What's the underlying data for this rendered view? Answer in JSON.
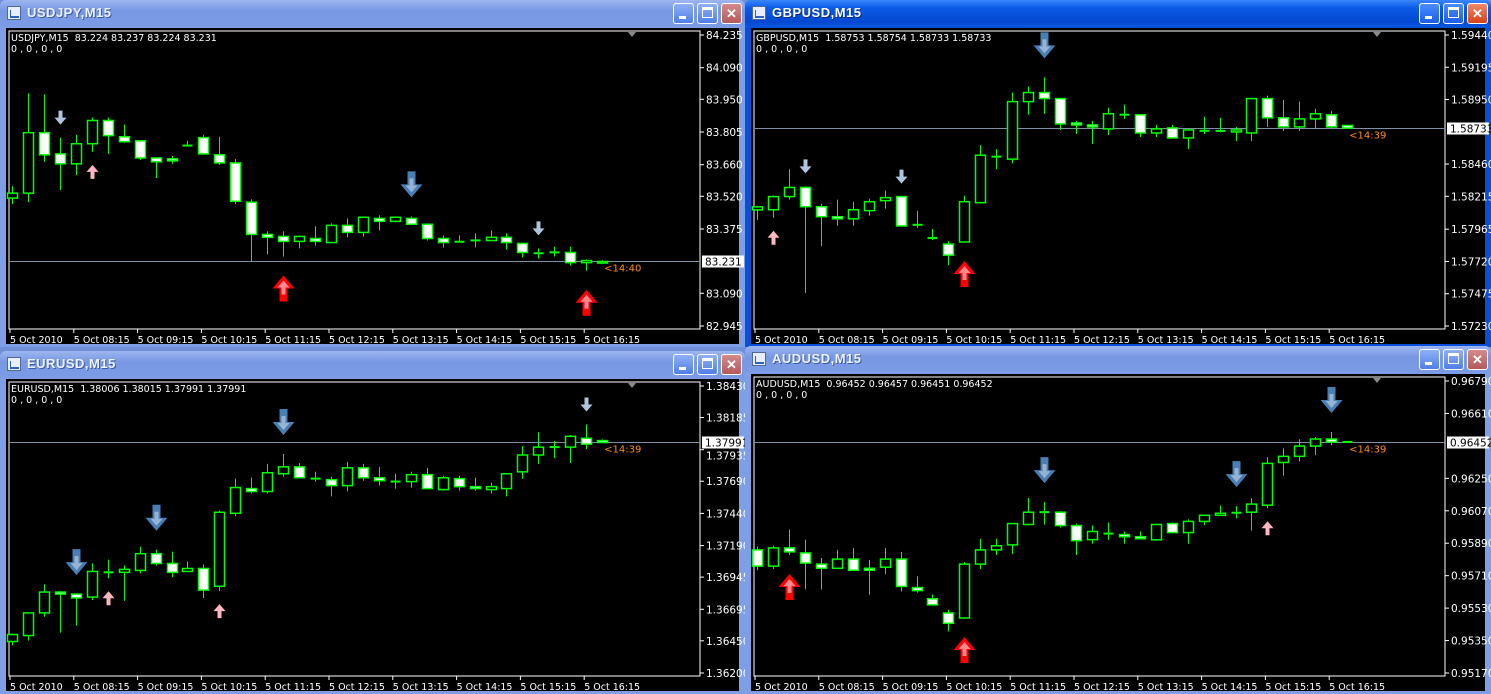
{
  "colors": {
    "bull_outline": "#00ff00",
    "bear_fill": "#ffffff",
    "background": "#000000",
    "bid_line": "#7f8fa6",
    "countdown": "#ff8c1a",
    "arrow_blue": "#4a7fb5",
    "arrow_light": "#b0c4de",
    "arrow_pink": "#ffb6c1",
    "arrow_red": "#ff0000"
  },
  "time_labels": [
    "5 Oct 2010",
    "5 Oct 08:15",
    "5 Oct 09:15",
    "5 Oct 10:15",
    "5 Oct 11:15",
    "5 Oct 12:15",
    "5 Oct 13:15",
    "5 Oct 14:15",
    "5 Oct 15:15",
    "5 Oct 16:15"
  ],
  "charts": [
    {
      "title": "USDJPY,M15",
      "active": false,
      "header_line": "USDJPY,M15  83.224 83.237 83.224 83.231",
      "indicator_line": "0 , 0 , 0 , 0",
      "ylim": [
        82.945,
        84.235
      ],
      "yticks": [
        "84.235",
        "84.090",
        "83.950",
        "83.805",
        "83.660",
        "83.520",
        "83.375",
        "83.090",
        "82.945"
      ],
      "bid": "83.231",
      "countdown": "<14:40",
      "candles": [
        [
          83.512,
          83.565,
          83.485,
          83.534
        ],
        [
          83.534,
          83.976,
          83.494,
          83.802
        ],
        [
          83.802,
          83.972,
          83.673,
          83.704
        ],
        [
          83.708,
          83.78,
          83.548,
          83.664
        ],
        [
          83.664,
          83.793,
          83.614,
          83.753
        ],
        [
          83.753,
          83.869,
          83.717,
          83.856
        ],
        [
          83.856,
          83.869,
          83.708,
          83.789
        ],
        [
          83.784,
          83.838,
          83.757,
          83.762
        ],
        [
          83.766,
          83.766,
          83.681,
          83.69
        ],
        [
          83.69,
          83.69,
          83.601,
          83.673
        ],
        [
          83.686,
          83.699,
          83.664,
          83.677
        ],
        [
          83.744,
          83.766,
          83.744,
          83.746
        ],
        [
          83.78,
          83.793,
          83.704,
          83.708
        ],
        [
          83.704,
          83.784,
          83.659,
          83.668
        ],
        [
          83.668,
          83.686,
          83.485,
          83.498
        ],
        [
          83.494,
          83.507,
          83.231,
          83.351
        ],
        [
          83.351,
          83.365,
          83.262,
          83.338
        ],
        [
          83.342,
          83.365,
          83.253,
          83.32
        ],
        [
          83.32,
          83.347,
          83.289,
          83.342
        ],
        [
          83.333,
          83.387,
          83.302,
          83.32
        ],
        [
          83.315,
          83.4,
          83.315,
          83.391
        ],
        [
          83.391,
          83.422,
          83.338,
          83.36
        ],
        [
          83.36,
          83.431,
          83.342,
          83.427
        ],
        [
          83.422,
          83.436,
          83.369,
          83.409
        ],
        [
          83.409,
          83.431,
          83.404,
          83.427
        ],
        [
          83.422,
          83.431,
          83.396,
          83.396
        ],
        [
          83.396,
          83.4,
          83.324,
          83.333
        ],
        [
          83.333,
          83.347,
          83.293,
          83.315
        ],
        [
          83.317,
          83.347,
          83.317,
          83.32
        ],
        [
          83.324,
          83.356,
          83.293,
          83.325
        ],
        [
          83.324,
          83.369,
          83.324,
          83.338
        ],
        [
          83.338,
          83.356,
          83.284,
          83.315
        ],
        [
          83.311,
          83.315,
          83.249,
          83.271
        ],
        [
          83.267,
          83.289,
          83.244,
          83.268
        ],
        [
          83.271,
          83.297,
          83.253,
          83.272
        ],
        [
          83.271,
          83.297,
          83.213,
          83.226
        ],
        [
          83.226,
          83.24,
          83.19,
          83.235
        ],
        [
          83.224,
          83.237,
          83.224,
          83.231
        ]
      ],
      "arrows": [
        {
          "bar": 3,
          "type": "small-light-down"
        },
        {
          "bar": 5,
          "type": "small-pink-up"
        },
        {
          "bar": 17,
          "type": "big-red-up"
        },
        {
          "bar": 25,
          "type": "big-blue-down"
        },
        {
          "bar": 33,
          "type": "small-light-down"
        },
        {
          "bar": 36,
          "type": "big-red-up"
        }
      ]
    },
    {
      "title": "GBPUSD,M15",
      "active": true,
      "header_line": "GBPUSD,M15  1.58753 1.58754 1.58733 1.58733",
      "indicator_line": "0 , 0 , 0 , 0",
      "ylim": [
        1.5723,
        1.5944
      ],
      "yticks": [
        "1.59440",
        "1.59195",
        "1.58950",
        "1.58460",
        "1.58215",
        "1.57965",
        "1.57720",
        "1.57475",
        "1.57230"
      ],
      "bid": "1.58733",
      "countdown": "<14:39",
      "candles": [
        [
          1.58112,
          1.58143,
          1.58036,
          1.58135
        ],
        [
          1.58113,
          1.5822,
          1.58052,
          1.58213
        ],
        [
          1.58213,
          1.5842,
          1.5819,
          1.58282
        ],
        [
          1.58282,
          1.5829,
          1.5748,
          1.58136
        ],
        [
          1.58136,
          1.58159,
          1.57837,
          1.5806
        ],
        [
          1.5806,
          1.5819,
          1.5799,
          1.58044
        ],
        [
          1.58044,
          1.58174,
          1.5799,
          1.58113
        ],
        [
          1.58106,
          1.58197,
          1.58067,
          1.58174
        ],
        [
          1.58182,
          1.58259,
          1.58121,
          1.58205
        ],
        [
          1.58213,
          1.58213,
          1.5799,
          1.5799
        ],
        [
          1.57998,
          1.58106,
          1.57975,
          1.57999
        ],
        [
          1.57898,
          1.57967,
          1.57883,
          1.57899
        ],
        [
          1.57852,
          1.57875,
          1.57691,
          1.57768
        ],
        [
          1.57868,
          1.5822,
          1.57868,
          1.58174
        ],
        [
          1.58167,
          1.58604,
          1.58159,
          1.58527
        ],
        [
          1.58512,
          1.58573,
          1.5842,
          1.5852
        ],
        [
          1.58497,
          1.59003,
          1.58466,
          1.58934
        ],
        [
          1.58934,
          1.59049,
          1.58834,
          1.59003
        ],
        [
          1.59003,
          1.59118,
          1.58842,
          1.58957
        ],
        [
          1.58957,
          1.58957,
          1.58719,
          1.58765
        ],
        [
          1.58772,
          1.58788,
          1.58688,
          1.58757
        ],
        [
          1.58757,
          1.58788,
          1.58612,
          1.58742
        ],
        [
          1.58727,
          1.58888,
          1.58681,
          1.58842
        ],
        [
          1.58834,
          1.58911,
          1.58803,
          1.58835
        ],
        [
          1.58834,
          1.58834,
          1.58665,
          1.58696
        ],
        [
          1.58696,
          1.58757,
          1.58665,
          1.58727
        ],
        [
          1.58734,
          1.58757,
          1.58658,
          1.58658
        ],
        [
          1.58658,
          1.58727,
          1.58573,
          1.58719
        ],
        [
          1.58711,
          1.58819,
          1.58688,
          1.58714
        ],
        [
          1.58711,
          1.58811,
          1.58703,
          1.58712
        ],
        [
          1.58704,
          1.58742,
          1.58634,
          1.58719
        ],
        [
          1.58696,
          1.58957,
          1.58634,
          1.58957
        ],
        [
          1.58957,
          1.5898,
          1.58742,
          1.58811
        ],
        [
          1.58811,
          1.58946,
          1.58711,
          1.58742
        ],
        [
          1.58742,
          1.58934,
          1.58711,
          1.58803
        ],
        [
          1.58803,
          1.5888,
          1.58727,
          1.58842
        ],
        [
          1.58834,
          1.58865,
          1.58727,
          1.58742
        ],
        [
          1.58753,
          1.58754,
          1.58733,
          1.58733
        ]
      ],
      "arrows": [
        {
          "bar": 1,
          "type": "small-pink-up"
        },
        {
          "bar": 3,
          "type": "small-light-down"
        },
        {
          "bar": 9,
          "type": "small-light-down"
        },
        {
          "bar": 13,
          "type": "big-red-up"
        },
        {
          "bar": 18,
          "type": "big-blue-down"
        }
      ]
    },
    {
      "title": "EURUSD,M15",
      "active": false,
      "header_line": "EURUSD,M15  1.38006 1.38015 1.37991 1.37991",
      "indicator_line": "0 , 0 , 0 , 0",
      "ylim": [
        1.362,
        1.3843
      ],
      "yticks": [
        "1.38430",
        "1.38185",
        "1.37935",
        "1.37690",
        "1.37440",
        "1.37190",
        "1.36945",
        "1.36695",
        "1.36450",
        "1.36200"
      ],
      "bid": "1.37991",
      "countdown": "<14:39",
      "candles": [
        [
          1.36445,
          1.36507,
          1.36415,
          1.36499
        ],
        [
          1.36491,
          1.36667,
          1.36453,
          1.36667
        ],
        [
          1.36667,
          1.3689,
          1.36637,
          1.36829
        ],
        [
          1.36829,
          1.36836,
          1.36514,
          1.36813
        ],
        [
          1.36813,
          1.36813,
          1.36568,
          1.36783
        ],
        [
          1.3679,
          1.37051,
          1.36767,
          1.36989
        ],
        [
          1.36982,
          1.37081,
          1.36936,
          1.36983
        ],
        [
          1.36982,
          1.37035,
          1.3676,
          1.37005
        ],
        [
          1.36997,
          1.37181,
          1.36974,
          1.37127
        ],
        [
          1.37127,
          1.37158,
          1.37035,
          1.37051
        ],
        [
          1.37051,
          1.37143,
          1.36944,
          1.36982
        ],
        [
          1.36989,
          1.37066,
          1.36989,
          1.37012
        ],
        [
          1.37012,
          1.37043,
          1.36783,
          1.36844
        ],
        [
          1.36874,
          1.37464,
          1.36836,
          1.37449
        ],
        [
          1.37441,
          1.3771,
          1.37418,
          1.37641
        ],
        [
          1.37633,
          1.37718,
          1.37595,
          1.3761
        ],
        [
          1.3761,
          1.37825,
          1.37595,
          1.37756
        ],
        [
          1.37748,
          1.37902,
          1.37725,
          1.37802
        ],
        [
          1.37802,
          1.37832,
          1.37717,
          1.37717
        ],
        [
          1.3771,
          1.37764,
          1.37687,
          1.37711
        ],
        [
          1.37702,
          1.37725,
          1.37572,
          1.37656
        ],
        [
          1.37656,
          1.3784,
          1.3761,
          1.37794
        ],
        [
          1.37794,
          1.37825,
          1.37694,
          1.37717
        ],
        [
          1.37717,
          1.37802,
          1.37656,
          1.37694
        ],
        [
          1.37687,
          1.37748,
          1.37633,
          1.37688
        ],
        [
          1.37687,
          1.37764,
          1.3764,
          1.37741
        ],
        [
          1.37741,
          1.37794,
          1.37633,
          1.37633
        ],
        [
          1.37625,
          1.37733,
          1.37617,
          1.37717
        ],
        [
          1.3771,
          1.37733,
          1.37617,
          1.37648
        ],
        [
          1.37648,
          1.37717,
          1.37617,
          1.37633
        ],
        [
          1.37625,
          1.37679,
          1.37595,
          1.37648
        ],
        [
          1.37633,
          1.37748,
          1.37572,
          1.37748
        ],
        [
          1.37763,
          1.37963,
          1.3771,
          1.37894
        ],
        [
          1.37894,
          1.38071,
          1.37825,
          1.37955
        ],
        [
          1.37955,
          1.38002,
          1.3787,
          1.37956
        ],
        [
          1.37955,
          1.38047,
          1.37832,
          1.38039
        ],
        [
          1.38024,
          1.38131,
          1.3794,
          1.37978
        ],
        [
          1.38006,
          1.38015,
          1.37991,
          1.37991
        ]
      ],
      "arrows": [
        {
          "bar": 4,
          "type": "big-blue-down"
        },
        {
          "bar": 6,
          "type": "small-pink-up"
        },
        {
          "bar": 9,
          "type": "big-blue-down"
        },
        {
          "bar": 13,
          "type": "small-pink-up"
        },
        {
          "bar": 17,
          "type": "big-blue-down"
        },
        {
          "bar": 36,
          "type": "small-light-down"
        }
      ]
    },
    {
      "title": "AUDUSD,M15",
      "active": false,
      "header_line": "AUDUSD,M15  0.96452 0.96457 0.96451 0.96452",
      "indicator_line": "0 , 0 , 0 , 0",
      "ylim": [
        0.9517,
        0.9679
      ],
      "yticks": [
        "0.96790",
        "0.96610",
        "0.96250",
        "0.96070",
        "0.95890",
        "0.95710",
        "0.95530",
        "0.95350",
        "0.95170"
      ],
      "bid": "0.96452",
      "countdown": "<14:39",
      "candles": [
        [
          0.95853,
          0.95872,
          0.95741,
          0.95763
        ],
        [
          0.95763,
          0.95876,
          0.95746,
          0.95864
        ],
        [
          0.95864,
          0.95966,
          0.95825,
          0.95842
        ],
        [
          0.95836,
          0.95909,
          0.95633,
          0.9578
        ],
        [
          0.95774,
          0.95808,
          0.95633,
          0.95751
        ],
        [
          0.95751,
          0.95853,
          0.95746,
          0.95802
        ],
        [
          0.95802,
          0.95864,
          0.9574,
          0.9574
        ],
        [
          0.95751,
          0.95797,
          0.95605,
          0.9574
        ],
        [
          0.95757,
          0.95864,
          0.95718,
          0.95802
        ],
        [
          0.95802,
          0.95842,
          0.95622,
          0.9565
        ],
        [
          0.95644,
          0.95706,
          0.95616,
          0.95627
        ],
        [
          0.95582,
          0.95605,
          0.95548,
          0.95548
        ],
        [
          0.95503,
          0.9552,
          0.95401,
          0.95446
        ],
        [
          0.95475,
          0.95785,
          0.95475,
          0.95774
        ],
        [
          0.95774,
          0.95915,
          0.95746,
          0.95853
        ],
        [
          0.95853,
          0.95915,
          0.95825,
          0.95876
        ],
        [
          0.95881,
          0.95999,
          0.95831,
          0.95999
        ],
        [
          0.95994,
          0.96141,
          0.95988,
          0.96062
        ],
        [
          0.96062,
          0.96118,
          0.95994,
          0.96063
        ],
        [
          0.96062,
          0.96068,
          0.95977,
          0.95988
        ],
        [
          0.95988,
          0.95999,
          0.95825,
          0.95904
        ],
        [
          0.9591,
          0.95988,
          0.95887,
          0.95955
        ],
        [
          0.95943,
          0.96005,
          0.95909,
          0.95944
        ],
        [
          0.95938,
          0.95955,
          0.95887,
          0.95926
        ],
        [
          0.95926,
          0.95955,
          0.95915,
          0.95915
        ],
        [
          0.95909,
          0.95999,
          0.95904,
          0.95994
        ],
        [
          0.95999,
          0.96005,
          0.95949,
          0.95949
        ],
        [
          0.95949,
          0.96022,
          0.95887,
          0.96011
        ],
        [
          0.96011,
          0.96045,
          0.9599,
          0.96045
        ],
        [
          0.96045,
          0.961,
          0.96045,
          0.96056
        ],
        [
          0.96056,
          0.96096,
          0.96028,
          0.96062
        ],
        [
          0.96062,
          0.96141,
          0.9596,
          0.96107
        ],
        [
          0.96101,
          0.96367,
          0.96084,
          0.96333
        ],
        [
          0.96338,
          0.96417,
          0.96265,
          0.96372
        ],
        [
          0.96372,
          0.96467,
          0.96344,
          0.96429
        ],
        [
          0.96429,
          0.96479,
          0.96378,
          0.96468
        ],
        [
          0.96468,
          0.96507,
          0.96434,
          0.96451
        ],
        [
          0.96452,
          0.96457,
          0.96451,
          0.96452
        ]
      ],
      "arrows": [
        {
          "bar": 2,
          "type": "big-red-up"
        },
        {
          "bar": 13,
          "type": "big-red-up"
        },
        {
          "bar": 18,
          "type": "big-blue-down"
        },
        {
          "bar": 30,
          "type": "big-blue-down"
        },
        {
          "bar": 32,
          "type": "small-pink-up"
        },
        {
          "bar": 36,
          "type": "big-blue-down"
        }
      ]
    }
  ]
}
